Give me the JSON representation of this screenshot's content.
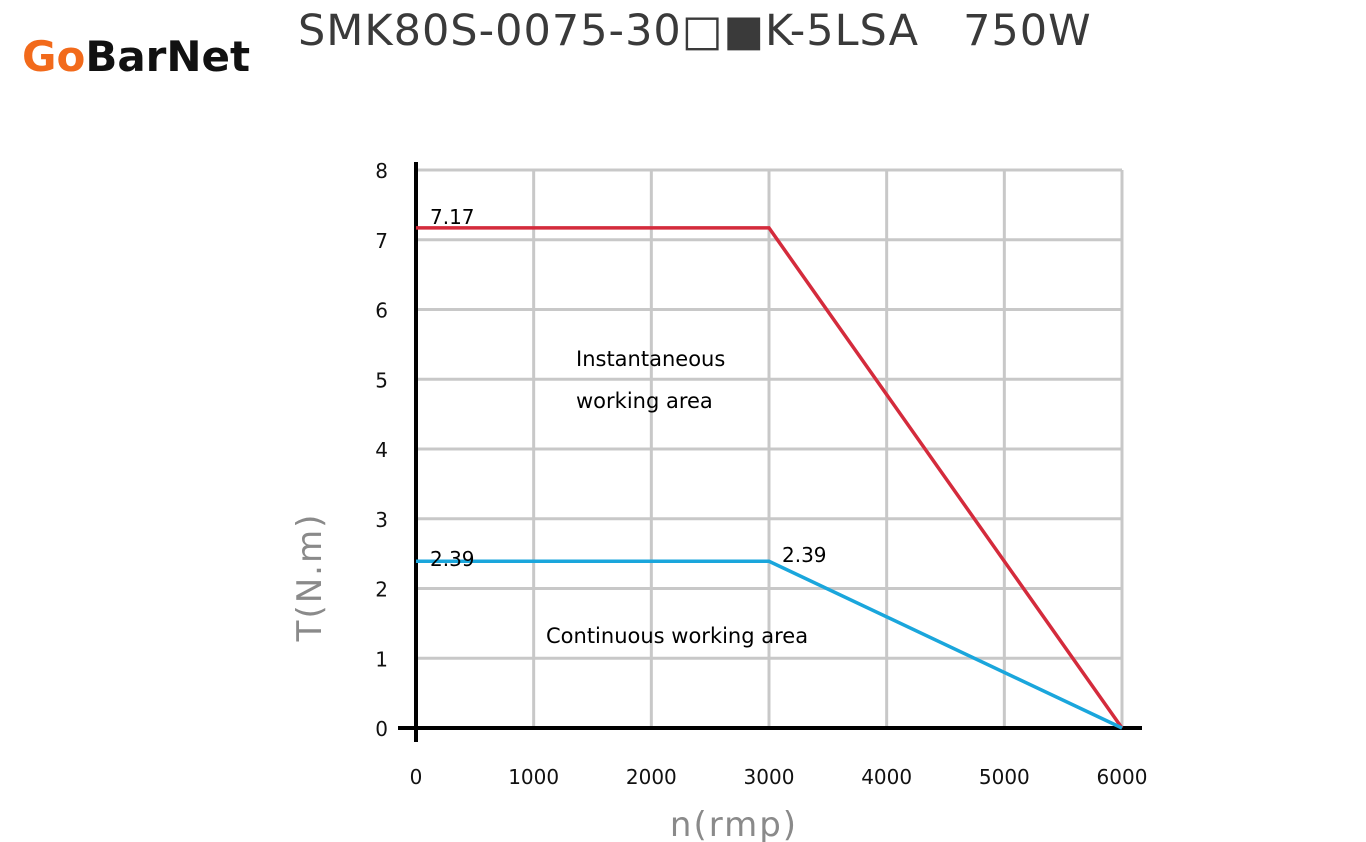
{
  "brand": {
    "logo_text_accent": "Go",
    "logo_text_rest": "BarNet",
    "accent_color": "#f26a1b"
  },
  "chart_data": {
    "type": "line",
    "title": "SMK80S-0075-30□■K-5LSA   750W",
    "xlabel": "n(rmp)",
    "ylabel": "T(N.m)",
    "xlim": [
      0,
      6000
    ],
    "ylim": [
      0,
      8
    ],
    "x_ticks": [
      "0",
      "1000",
      "2000",
      "3000",
      "4000",
      "5000",
      "6000"
    ],
    "y_ticks": [
      "0",
      "1",
      "2",
      "3",
      "4",
      "5",
      "6",
      "7",
      "8"
    ],
    "grid": true,
    "series": [
      {
        "x": [
          0,
          3000,
          6000
        ],
        "y": [
          7.17,
          7.17,
          0
        ],
        "color": "#d42b3c"
      },
      {
        "x": [
          0,
          3000,
          6000
        ],
        "y": [
          2.39,
          2.39,
          0
        ],
        "color": "#1aa6dc"
      }
    ],
    "data_labels": [
      "7.17",
      "2.39",
      "2.39"
    ],
    "annotations": {
      "instantaneous_line1": "Instantaneous",
      "instantaneous_line2": "working area",
      "continuous": "Continuous working area"
    }
  }
}
